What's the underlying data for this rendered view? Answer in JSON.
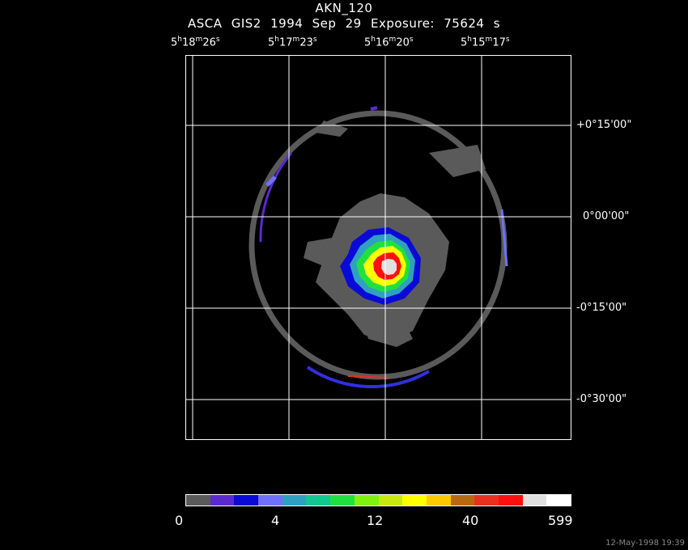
{
  "header": {
    "object": "AKN_120",
    "instrument": "ASCA GIS2",
    "date": "1994 Sep 29",
    "exposure": "Exposure: 75624 s"
  },
  "ra_ticks": [
    {
      "h": "5",
      "m": "18",
      "s": "26"
    },
    {
      "h": "5",
      "m": "17",
      "s": "23"
    },
    {
      "h": "5",
      "m": "16",
      "s": "20"
    },
    {
      "h": "5",
      "m": "15",
      "s": "17"
    }
  ],
  "dec_ticks": [
    "+0°15'00\"",
    "0°00'00\"",
    "-0°15'00\"",
    "-0°30'00\""
  ],
  "colorbar": {
    "colors": [
      "#5a5a5a",
      "#5a2ad0",
      "#0a0ad8",
      "#7070ff",
      "#30a0c0",
      "#10c890",
      "#20e040",
      "#80f010",
      "#c8e810",
      "#ffff00",
      "#ffc800",
      "#b86810",
      "#e83020",
      "#ff1010",
      "#e0e0e0",
      "#ffffff"
    ],
    "labels": [
      "0",
      "4",
      "12",
      "40",
      "599"
    ]
  },
  "footer": "12-May-1998 19:39"
}
